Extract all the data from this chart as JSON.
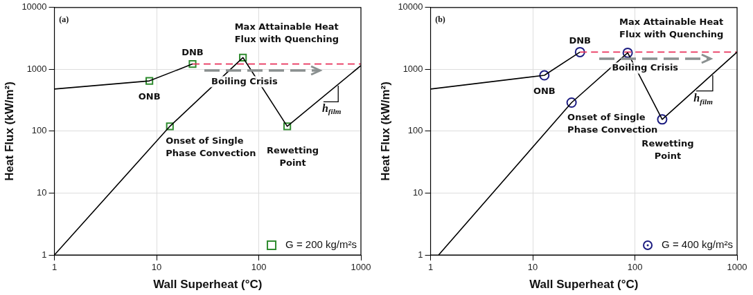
{
  "chart_data": [
    {
      "type": "line",
      "xlabel": "Wall Superheat (°C)",
      "ylabel": "Heat Flux (kW/m²)",
      "log": "xy",
      "grid": true,
      "legend": "bottom right",
      "xlim": [
        1,
        1000
      ],
      "xticks": [
        1,
        10,
        100,
        1000
      ],
      "ylim": [
        1,
        10000
      ],
      "yticks": [
        1,
        10,
        100,
        1000,
        10000
      ],
      "series": [
        {
          "color": "#000000",
          "marker": "none",
          "line_style": "solid",
          "x": [
            1,
            8.5,
            22.5
          ],
          "values": [
            480,
            650,
            1220
          ]
        },
        {
          "color": "#000000",
          "marker": "none",
          "line_style": "solid",
          "x": [
            1,
            13.5,
            70,
            190,
            1000
          ],
          "values": [
            1,
            120,
            1550,
            120,
            1150
          ]
        },
        {
          "color": "#e8305a",
          "marker": "none",
          "line_style": "dashed",
          "x": [
            22.5,
            1000
          ],
          "values": [
            1220,
            1220
          ]
        },
        {
          "type": "scatter",
          "name": "G = 200 kg/m²s",
          "color": "#2e8b2e",
          "marker": "square",
          "x": [
            8.5,
            22.5,
            13.5,
            70,
            190
          ],
          "values": [
            650,
            1220,
            120,
            1550,
            120
          ]
        }
      ],
      "annotations": [
        {
          "text": "ONB",
          "x": 8.5,
          "y": 650
        },
        {
          "text": "DNB",
          "x": 22.5,
          "y": 1220
        },
        {
          "text": "Max Attainable Heat\nFlux with Quenching",
          "x": 70,
          "y": 1550
        },
        {
          "text": "Onset of Single\nPhase Convection",
          "x": 13.5,
          "y": 120
        },
        {
          "text": "Rewetting\nPoint",
          "x": 190,
          "y": 120
        },
        "Boiling Crisis",
        "(a)",
        "h$_{film}$"
      ]
    },
    {
      "type": "line",
      "xlabel": "Wall Superheat (°C)",
      "ylabel": "Heat Flux (kW/m²)",
      "log": "xy",
      "grid": true,
      "legend": "bottom right",
      "xlim": [
        1,
        1000
      ],
      "xticks": [
        1,
        10,
        100,
        1000
      ],
      "ylim": [
        1,
        10000
      ],
      "yticks": [
        1,
        10,
        100,
        1000,
        10000
      ],
      "series": [
        {
          "color": "#000000",
          "marker": "none",
          "line_style": "solid",
          "x": [
            1,
            13,
            29
          ],
          "values": [
            480,
            800,
            1900
          ]
        },
        {
          "color": "#000000",
          "marker": "none",
          "line_style": "solid",
          "x": [
            1.2,
            24,
            85,
            185,
            1000
          ],
          "values": [
            1,
            290,
            1850,
            155,
            1900
          ]
        },
        {
          "color": "#e8305a",
          "marker": "none",
          "line_style": "dashed",
          "x": [
            29,
            1000
          ],
          "values": [
            1900,
            1900
          ]
        },
        {
          "type": "scatter",
          "name": "G = 400 kg/m²s",
          "color": "#1c1c80",
          "marker": "circle",
          "x": [
            13,
            29,
            24,
            85,
            185
          ],
          "values": [
            800,
            1900,
            290,
            1850,
            155
          ]
        }
      ],
      "annotations": [
        {
          "text": "ONB",
          "x": 13,
          "y": 800
        },
        {
          "text": "DNB",
          "x": 29,
          "y": 1900
        },
        {
          "text": "Max Attainable Heat\nFlux with Quenching",
          "x": 85,
          "y": 1850
        },
        {
          "text": "Onset of Single\nPhase Convection",
          "x": 24,
          "y": 290
        },
        {
          "text": "Rewetting\nPoint",
          "x": 185,
          "y": 155
        },
        "Boiling Crisis",
        "(b)",
        "h$_{film}$"
      ]
    }
  ]
}
